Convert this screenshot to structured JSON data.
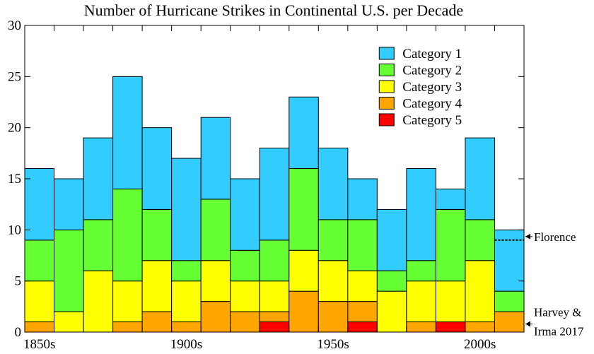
{
  "chart_data": {
    "type": "bar",
    "stacked": true,
    "title": "Number of Hurricane Strikes in Continental U.S. per Decade",
    "xlabel": "",
    "ylabel": "",
    "ylim": [
      0,
      30
    ],
    "yticks": [
      0,
      5,
      10,
      15,
      20,
      25,
      30
    ],
    "categories": [
      "1850s",
      "1860s",
      "1870s",
      "1880s",
      "1890s",
      "1900s",
      "1910s",
      "1920s",
      "1930s",
      "1940s",
      "1950s",
      "1960s",
      "1970s",
      "1980s",
      "1990s",
      "2000s",
      "2010s"
    ],
    "xtick_labels": [
      {
        "label": "1850s",
        "category": "1850s"
      },
      {
        "label": "1900s",
        "category": "1900s"
      },
      {
        "label": "1950s",
        "category": "1950s"
      },
      {
        "label": "2000s",
        "category": "2000s"
      }
    ],
    "series": [
      {
        "name": "Category 5",
        "color": "#ff0000",
        "values": [
          0,
          0,
          0,
          0,
          0,
          0,
          0,
          0,
          1,
          0,
          0,
          1,
          0,
          0,
          1,
          0,
          0
        ]
      },
      {
        "name": "Category 4",
        "color": "#ffa500",
        "values": [
          1,
          0,
          0,
          1,
          2,
          1,
          3,
          2,
          1,
          4,
          3,
          2,
          0,
          1,
          0,
          1,
          2
        ]
      },
      {
        "name": "Category 3",
        "color": "#ffff00",
        "values": [
          4,
          2,
          6,
          4,
          5,
          4,
          4,
          3,
          3,
          4,
          4,
          3,
          4,
          4,
          4,
          6,
          0
        ]
      },
      {
        "name": "Category 2",
        "color": "#66ff33",
        "values": [
          4,
          8,
          5,
          9,
          5,
          2,
          6,
          3,
          4,
          8,
          4,
          5,
          2,
          2,
          7,
          4,
          2
        ]
      },
      {
        "name": "Category 1",
        "color": "#33ccff",
        "values": [
          7,
          5,
          8,
          11,
          8,
          10,
          8,
          7,
          9,
          7,
          7,
          4,
          6,
          9,
          2,
          8,
          6
        ]
      }
    ],
    "legend_order": [
      "Category 1",
      "Category 2",
      "Category 3",
      "Category 4",
      "Category 5"
    ],
    "legend_position": "top-right",
    "grid": false,
    "annotations": [
      {
        "text": "Florence",
        "category": "2010s",
        "value": 9
      },
      {
        "text": "Harvey &",
        "category": "2010s",
        "value": 1
      },
      {
        "text": "Irma 2017",
        "category": "2010s",
        "value": 1
      }
    ]
  }
}
